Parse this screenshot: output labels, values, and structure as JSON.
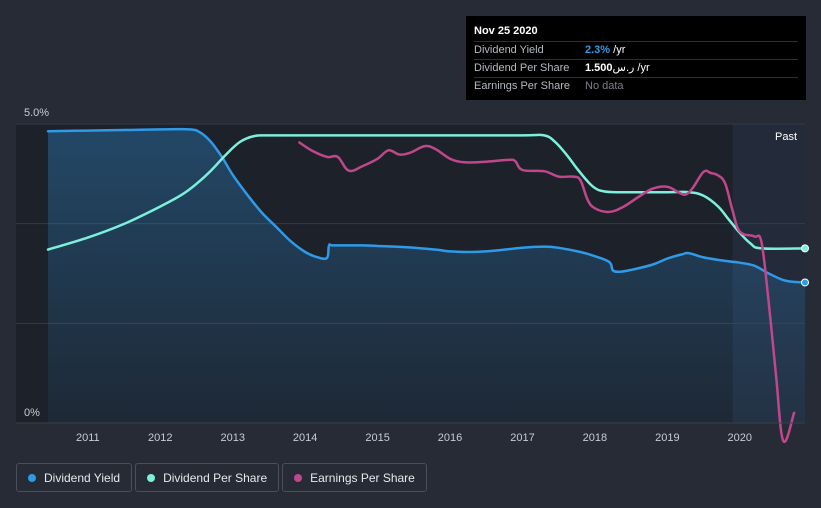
{
  "chart_data": {
    "type": "line",
    "title": "",
    "y_axis": {
      "min_label": "0%",
      "max_label": "5.0%",
      "ylim": [
        0,
        5.0
      ]
    },
    "x_ticks": [
      "2011",
      "2012",
      "2013",
      "2014",
      "2015",
      "2016",
      "2017",
      "2018",
      "2019",
      "2020"
    ],
    "xlim": [
      2010.45,
      2020.9
    ],
    "forecast_start": 2019.9,
    "past_label": "Past",
    "series": [
      {
        "name": "Dividend Yield",
        "color": "#2e9ae8",
        "fill": true,
        "end_marker": true,
        "x": [
          2010.45,
          2011.0,
          2011.5,
          2012.0,
          2012.4,
          2012.55,
          2012.7,
          2012.85,
          2013.0,
          2013.2,
          2013.4,
          2013.6,
          2013.8,
          2014.0,
          2014.15,
          2014.3,
          2014.33,
          2014.4,
          2014.8,
          2015.0,
          2015.4,
          2015.8,
          2016.0,
          2016.3,
          2016.6,
          2017.0,
          2017.3,
          2017.5,
          2017.8,
          2018.0,
          2018.2,
          2018.25,
          2018.35,
          2018.5,
          2018.8,
          2019.0,
          2019.2,
          2019.3,
          2019.5,
          2019.8,
          2020.0,
          2020.2,
          2020.4,
          2020.6,
          2020.75,
          2020.9
        ],
        "values": [
          4.88,
          4.89,
          4.9,
          4.91,
          4.91,
          4.86,
          4.7,
          4.45,
          4.15,
          3.82,
          3.52,
          3.28,
          3.04,
          2.86,
          2.78,
          2.76,
          2.97,
          2.97,
          2.97,
          2.96,
          2.94,
          2.9,
          2.87,
          2.86,
          2.88,
          2.93,
          2.95,
          2.93,
          2.86,
          2.79,
          2.69,
          2.55,
          2.53,
          2.56,
          2.65,
          2.75,
          2.82,
          2.84,
          2.77,
          2.71,
          2.68,
          2.63,
          2.5,
          2.39,
          2.36,
          2.35
        ]
      },
      {
        "name": "Dividend Per Share",
        "color": "#7df0dc",
        "fill": false,
        "end_marker": true,
        "x": [
          2010.45,
          2011.0,
          2011.5,
          2012.0,
          2012.3,
          2012.5,
          2012.7,
          2012.9,
          2013.1,
          2013.3,
          2013.5,
          2014.0,
          2015.0,
          2016.0,
          2017.0,
          2017.3,
          2017.45,
          2017.6,
          2017.75,
          2017.9,
          2018.0,
          2018.1,
          2018.3,
          2019.0,
          2019.3,
          2019.5,
          2019.7,
          2019.85,
          2020.0,
          2020.15,
          2020.3,
          2020.9
        ],
        "values": [
          2.9,
          3.1,
          3.33,
          3.62,
          3.82,
          4.0,
          4.22,
          4.48,
          4.7,
          4.8,
          4.81,
          4.81,
          4.81,
          4.81,
          4.81,
          4.81,
          4.7,
          4.5,
          4.26,
          4.04,
          3.93,
          3.88,
          3.86,
          3.86,
          3.86,
          3.8,
          3.62,
          3.4,
          3.18,
          3.0,
          2.92,
          2.92
        ]
      },
      {
        "name": "Earnings Per Share",
        "color": "#c0478c",
        "fill": false,
        "end_marker": false,
        "x": [
          2013.92,
          2014.1,
          2014.3,
          2014.45,
          2014.6,
          2014.8,
          2015.0,
          2015.15,
          2015.3,
          2015.45,
          2015.65,
          2015.8,
          2016.0,
          2016.2,
          2016.5,
          2016.8,
          2016.9,
          2017.0,
          2017.3,
          2017.5,
          2017.7,
          2017.8,
          2017.9,
          2018.0,
          2018.2,
          2018.4,
          2018.6,
          2018.8,
          2019.0,
          2019.15,
          2019.25,
          2019.35,
          2019.5,
          2019.6,
          2019.7,
          2019.8,
          2019.9,
          2020.0,
          2020.2,
          2020.3,
          2020.4,
          2020.5,
          2020.6,
          2020.75
        ],
        "values": [
          4.69,
          4.55,
          4.45,
          4.45,
          4.22,
          4.3,
          4.42,
          4.56,
          4.49,
          4.52,
          4.63,
          4.58,
          4.42,
          4.36,
          4.37,
          4.4,
          4.38,
          4.23,
          4.21,
          4.12,
          4.12,
          4.06,
          3.73,
          3.59,
          3.53,
          3.62,
          3.78,
          3.92,
          3.95,
          3.86,
          3.82,
          3.93,
          4.2,
          4.18,
          4.14,
          4.0,
          3.55,
          3.2,
          3.12,
          3.02,
          2.0,
          0.8,
          -0.3,
          0.17
        ]
      }
    ]
  },
  "tooltip": {
    "date": "Nov 25 2020",
    "rows": [
      {
        "label": "Dividend Yield",
        "value": "2.3%",
        "suffix": " /yr"
      },
      {
        "label": "Dividend Per Share",
        "value": "1.500",
        "currency": "ر.س",
        "suffix": " /yr"
      },
      {
        "label": "Earnings Per Share",
        "value": "No data"
      }
    ]
  },
  "legend": [
    {
      "label": "Dividend Yield",
      "color": "#2e9ae8"
    },
    {
      "label": "Dividend Per Share",
      "color": "#7df0dc"
    },
    {
      "label": "Earnings Per Share",
      "color": "#c0478c"
    }
  ]
}
